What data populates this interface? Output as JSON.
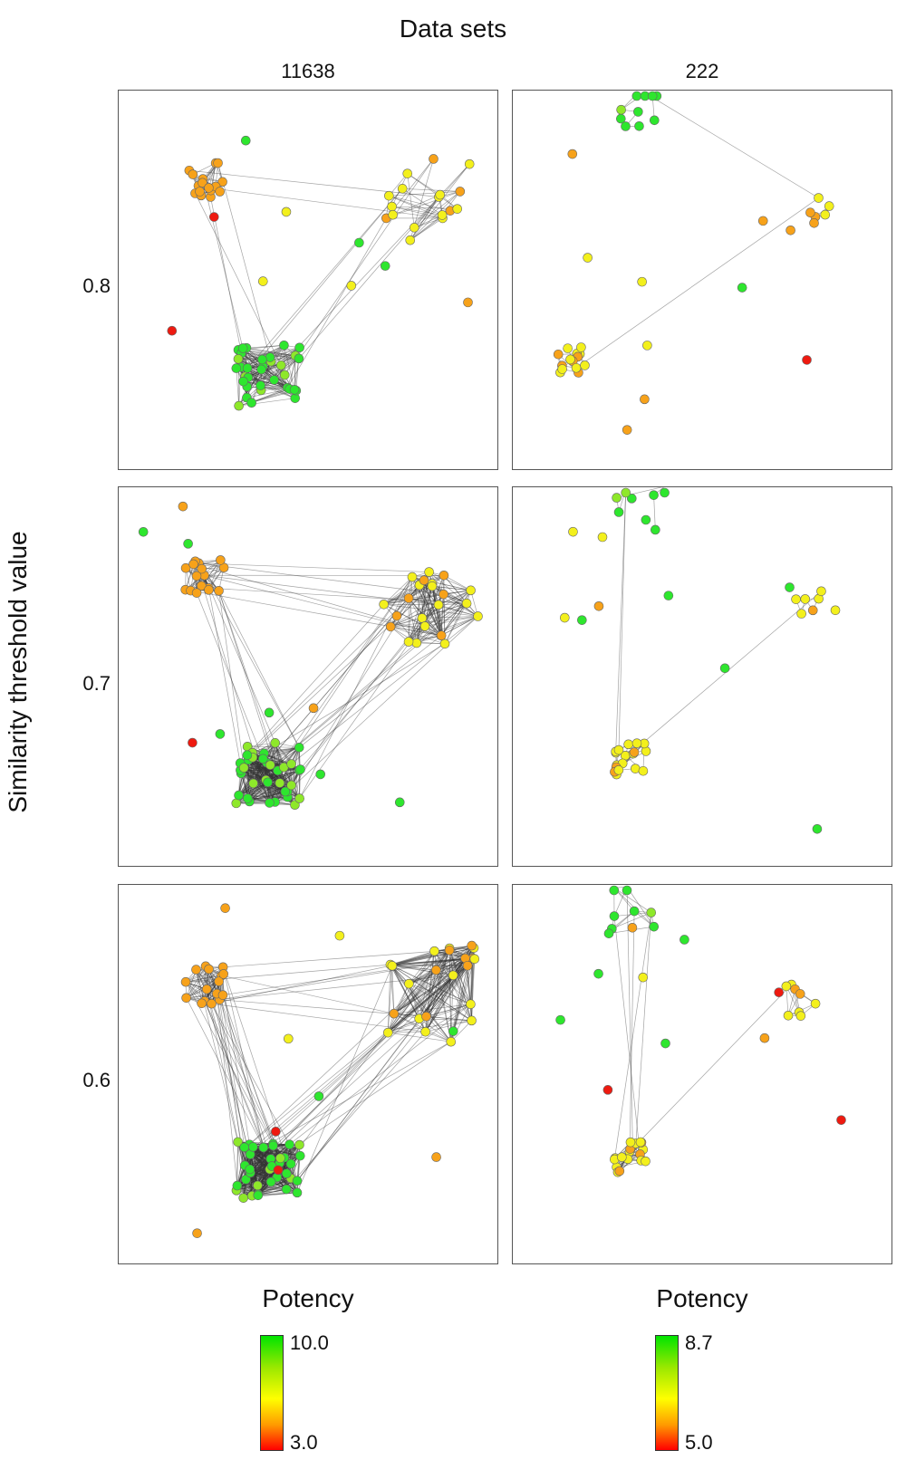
{
  "figure": {
    "title": "Data sets",
    "y_title": "Similarity threshold value",
    "columns": [
      "11638",
      "222"
    ],
    "rows": [
      "0.8",
      "0.7",
      "0.6"
    ]
  },
  "legends": [
    {
      "title": "Potency",
      "max": "10.0",
      "min": "3.0"
    },
    {
      "title": "Potency",
      "max": "8.7",
      "min": "5.0"
    }
  ],
  "colors": {
    "high": "#22dd22",
    "mid": "#f0f020",
    "low": "#ee1111",
    "edge": "#222222",
    "border": "#555555"
  },
  "node_color_scale": [
    "green",
    "yellowgreen",
    "yellow",
    "orange",
    "red"
  ]
}
